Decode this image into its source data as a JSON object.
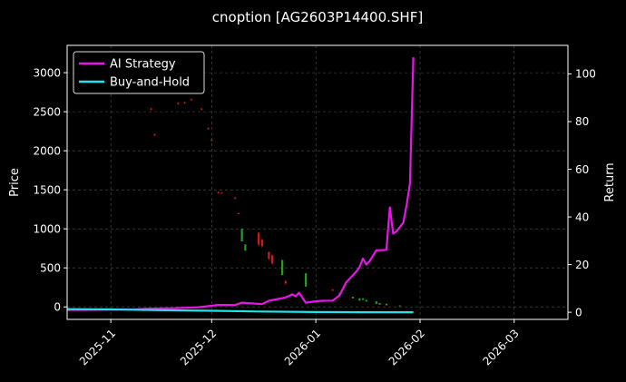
{
  "chart_data": {
    "type": "line",
    "title": "cnoption [AG2603P14400.SHF]",
    "ylabel": "Price",
    "y2label": "Return",
    "grid": true,
    "legend_position": "top-left",
    "x_range": [
      "2025-10-19",
      "2026-03-17"
    ],
    "ylim": [
      -160,
      3350
    ],
    "y2lim": [
      -3,
      112
    ],
    "x_ticks": [
      "2025-11",
      "2025-12",
      "2026-01",
      "2026-02",
      "2026-03"
    ],
    "y_ticks": [
      0,
      500,
      1000,
      1500,
      2000,
      2500,
      3000
    ],
    "y2_ticks": [
      0,
      20,
      40,
      60,
      80,
      100
    ],
    "colors": {
      "background": "#000000",
      "grid": "#555555",
      "up": "#1fa31f",
      "down": "#d11a1a"
    },
    "candles": [
      {
        "date": "2025-11-13",
        "open": 2540,
        "close": 2530,
        "high": 2550,
        "low": 2520
      },
      {
        "date": "2025-11-14",
        "open": 2210,
        "close": 2200,
        "high": 2220,
        "low": 2190
      },
      {
        "date": "2025-11-21",
        "open": 2610,
        "close": 2600,
        "high": 2620,
        "low": 2590
      },
      {
        "date": "2025-11-23",
        "open": 2620,
        "close": 2610,
        "high": 2630,
        "low": 2600
      },
      {
        "date": "2025-11-25",
        "open": 2660,
        "close": 2650,
        "high": 2670,
        "low": 2640
      },
      {
        "date": "2025-11-28",
        "open": 2540,
        "close": 2530,
        "high": 2550,
        "low": 2520
      },
      {
        "date": "2025-11-30",
        "open": 2290,
        "close": 2280,
        "high": 2300,
        "low": 2270
      },
      {
        "date": "2025-12-01",
        "open": 2140,
        "close": 2130,
        "high": 2150,
        "low": 2120
      },
      {
        "date": "2025-12-03",
        "open": 1470,
        "close": 1460,
        "high": 1480,
        "low": 1450
      },
      {
        "date": "2025-12-04",
        "open": 1460,
        "close": 1455,
        "high": 1470,
        "low": 1450
      },
      {
        "date": "2025-12-08",
        "open": 1400,
        "close": 1390,
        "high": 1410,
        "low": 1380
      },
      {
        "date": "2025-12-09",
        "open": 1200,
        "close": 1195,
        "high": 1210,
        "low": 1190
      },
      {
        "date": "2025-12-10",
        "open": 840,
        "close": 1000,
        "high": 1000,
        "low": 840
      },
      {
        "date": "2025-12-11",
        "open": 720,
        "close": 800,
        "high": 800,
        "low": 720
      },
      {
        "date": "2025-12-15",
        "open": 950,
        "close": 800,
        "high": 960,
        "low": 780
      },
      {
        "date": "2025-12-16",
        "open": 860,
        "close": 780,
        "high": 870,
        "low": 760
      },
      {
        "date": "2025-12-18",
        "open": 700,
        "close": 620,
        "high": 710,
        "low": 600
      },
      {
        "date": "2025-12-19",
        "open": 660,
        "close": 560,
        "high": 670,
        "low": 540
      },
      {
        "date": "2025-12-22",
        "open": 410,
        "close": 600,
        "high": 600,
        "low": 410
      },
      {
        "date": "2025-12-23",
        "open": 330,
        "close": 300,
        "high": 340,
        "low": 290
      },
      {
        "date": "2025-12-29",
        "open": 260,
        "close": 430,
        "high": 430,
        "low": 260
      },
      {
        "date": "2026-01-06",
        "open": 220,
        "close": 210,
        "high": 230,
        "low": 200
      },
      {
        "date": "2026-01-08",
        "open": 160,
        "close": 170,
        "high": 180,
        "low": 150
      },
      {
        "date": "2026-01-12",
        "open": 110,
        "close": 130,
        "high": 130,
        "low": 110
      },
      {
        "date": "2026-01-14",
        "open": 80,
        "close": 110,
        "high": 110,
        "low": 80
      },
      {
        "date": "2026-01-15",
        "open": 90,
        "close": 110,
        "high": 110,
        "low": 90
      },
      {
        "date": "2026-01-16",
        "open": 70,
        "close": 90,
        "high": 90,
        "low": 70
      },
      {
        "date": "2026-01-19",
        "open": 40,
        "close": 70,
        "high": 70,
        "low": 40
      },
      {
        "date": "2026-01-20",
        "open": 30,
        "close": 50,
        "high": 50,
        "low": 30
      },
      {
        "date": "2026-01-22",
        "open": 20,
        "close": 40,
        "high": 40,
        "low": 20
      },
      {
        "date": "2026-01-26",
        "open": 10,
        "close": 20,
        "high": 20,
        "low": 10
      }
    ],
    "series": [
      {
        "name": "AI Strategy",
        "color": "#e815e8",
        "axis": "right",
        "x": [
          "2025-10-19",
          "2025-10-25",
          "2025-11-01",
          "2025-11-08",
          "2025-11-12",
          "2025-11-20",
          "2025-11-27",
          "2025-12-01",
          "2025-12-03",
          "2025-12-08",
          "2025-12-10",
          "2025-12-12",
          "2025-12-16",
          "2025-12-18",
          "2025-12-23",
          "2025-12-25",
          "2025-12-26",
          "2025-12-27",
          "2025-12-29",
          "2026-01-01",
          "2026-01-03",
          "2026-01-06",
          "2026-01-08",
          "2026-01-10",
          "2026-01-13",
          "2026-01-14",
          "2026-01-15",
          "2026-01-16",
          "2026-01-17",
          "2026-01-19",
          "2026-01-21",
          "2026-01-22",
          "2026-01-23",
          "2026-01-24",
          "2026-01-25",
          "2026-01-27",
          "2026-01-28",
          "2026-01-29",
          "2026-01-30"
        ],
        "values": [
          1,
          1,
          1.1,
          1.2,
          1.5,
          1.7,
          2.1,
          2.7,
          3.1,
          3.0,
          4.0,
          3.8,
          3.4,
          4.8,
          6.2,
          7.5,
          6.7,
          8.2,
          4.0,
          4.6,
          4.8,
          4.9,
          7.0,
          12.5,
          17.0,
          19.0,
          22.5,
          20.0,
          21.5,
          26.0,
          26.1,
          26.2,
          44.0,
          33.0,
          34.0,
          37.5,
          45.0,
          54.0,
          107.0
        ]
      },
      {
        "name": "Buy-and-Hold",
        "color": "#22e3ec",
        "axis": "right",
        "x": [
          "2025-10-19",
          "2025-11-01",
          "2025-11-15",
          "2025-12-01",
          "2025-12-15",
          "2026-01-01",
          "2026-01-15",
          "2026-01-30"
        ],
        "values": [
          1.3,
          1.2,
          0.9,
          0.6,
          0.3,
          0.1,
          0.0,
          0.0
        ]
      }
    ]
  }
}
